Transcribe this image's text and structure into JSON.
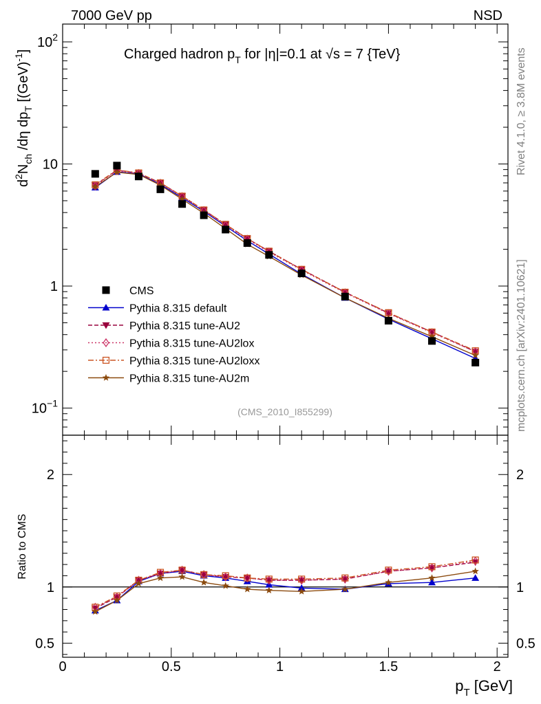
{
  "header": {
    "left": "7000 GeV pp",
    "right": "NSD"
  },
  "side": {
    "top": "Rivet 4.1.0, ≥ 3.8M events",
    "bottom": "mcplots.cern.ch [arXiv:2401.10621]"
  },
  "chart_data": [
    {
      "type": "line",
      "title": "Charged hadron p_T for |η|=0.1 at √s = 7 {TeV}",
      "analysis_label": "(CMS_2010_I855299)",
      "xlabel": "p_T [GeV]",
      "ylabel": "d²N_ch /dη dp_T [(GeV)⁻¹]",
      "yscale": "log",
      "xlim": [
        0,
        2.05
      ],
      "ylim": [
        0.06,
        140
      ],
      "x_ticks": [
        "0",
        "0.5",
        "1",
        "1.5",
        "2"
      ],
      "y_ticks": [
        "10⁻¹",
        "1",
        "10",
        "10²"
      ],
      "x": [
        0.15,
        0.25,
        0.35,
        0.45,
        0.55,
        0.65,
        0.75,
        0.85,
        0.95,
        1.1,
        1.3,
        1.5,
        1.7,
        1.9
      ],
      "data": {
        "name": "CMS",
        "values": [
          8.3,
          9.7,
          7.9,
          6.2,
          4.7,
          3.8,
          2.9,
          2.25,
          1.8,
          1.27,
          0.82,
          0.52,
          0.355,
          0.236
        ]
      },
      "series": [
        {
          "name": "Pythia 8.315 default",
          "color": "#0000cc",
          "marker": "triangle-up",
          "dash": "solid",
          "values": [
            6.4,
            8.6,
            8.3,
            6.8,
            5.3,
            4.1,
            3.1,
            2.35,
            1.83,
            1.25,
            0.8,
            0.535,
            0.37,
            0.255
          ]
        },
        {
          "name": "Pythia 8.315 tune-AU2",
          "color": "#99003d",
          "marker": "triangle-down",
          "dash": "dashed",
          "values": [
            6.7,
            8.9,
            8.4,
            7.0,
            5.45,
            4.2,
            3.2,
            2.45,
            1.93,
            1.37,
            0.89,
            0.6,
            0.42,
            0.29
          ]
        },
        {
          "name": "Pythia 8.315 tune-AU2lox",
          "color": "#cc3366",
          "marker": "diamond-open",
          "dash": "dashdot",
          "values": [
            6.6,
            8.8,
            8.35,
            6.95,
            5.4,
            4.15,
            3.15,
            2.42,
            1.9,
            1.35,
            0.88,
            0.595,
            0.415,
            0.29
          ]
        },
        {
          "name": "Pythia 8.315 tune-AU2loxx",
          "color": "#cc5522",
          "marker": "square-open",
          "dash": "dashdot2",
          "values": [
            6.75,
            8.95,
            8.45,
            7.0,
            5.45,
            4.2,
            3.2,
            2.45,
            1.93,
            1.37,
            0.89,
            0.605,
            0.42,
            0.295
          ]
        },
        {
          "name": "Pythia 8.315 tune-AU2m",
          "color": "#8b4a0e",
          "marker": "star",
          "dash": "solid",
          "values": [
            6.5,
            8.55,
            8.2,
            6.7,
            5.15,
            3.95,
            2.95,
            2.2,
            1.75,
            1.23,
            0.8,
            0.545,
            0.385,
            0.27
          ]
        }
      ]
    },
    {
      "type": "line",
      "title": "",
      "xlabel": "p_T [GeV]",
      "ylabel": "Ratio to CMS",
      "xlim": [
        0,
        2.05
      ],
      "ylim": [
        0.375,
        2.35
      ],
      "y_ticks": [
        "0.5",
        "1",
        "2"
      ],
      "reference_line": 1,
      "x": [
        0.15,
        0.25,
        0.35,
        0.45,
        0.55,
        0.65,
        0.75,
        0.85,
        0.95,
        1.1,
        1.3,
        1.5,
        1.7,
        1.9
      ],
      "series": [
        {
          "name": "Pythia 8.315 default",
          "values": [
            0.79,
            0.88,
            1.05,
            1.12,
            1.14,
            1.1,
            1.08,
            1.05,
            1.02,
            0.99,
            0.98,
            1.03,
            1.04,
            1.08
          ]
        },
        {
          "name": "Pythia 8.315 tune-AU2",
          "values": [
            0.81,
            0.91,
            1.06,
            1.12,
            1.15,
            1.11,
            1.09,
            1.08,
            1.06,
            1.06,
            1.07,
            1.14,
            1.17,
            1.22
          ]
        },
        {
          "name": "Pythia 8.315 tune-AU2lox",
          "values": [
            0.82,
            0.91,
            1.06,
            1.12,
            1.15,
            1.11,
            1.09,
            1.08,
            1.06,
            1.06,
            1.07,
            1.14,
            1.17,
            1.23
          ]
        },
        {
          "name": "Pythia 8.315 tune-AU2loxx",
          "values": [
            0.82,
            0.92,
            1.06,
            1.13,
            1.15,
            1.11,
            1.1,
            1.08,
            1.07,
            1.07,
            1.08,
            1.15,
            1.18,
            1.24
          ]
        },
        {
          "name": "Pythia 8.315 tune-AU2m",
          "values": [
            0.78,
            0.88,
            1.03,
            1.08,
            1.09,
            1.04,
            1.01,
            0.98,
            0.97,
            0.96,
            0.98,
            1.04,
            1.08,
            1.14
          ]
        }
      ]
    }
  ]
}
